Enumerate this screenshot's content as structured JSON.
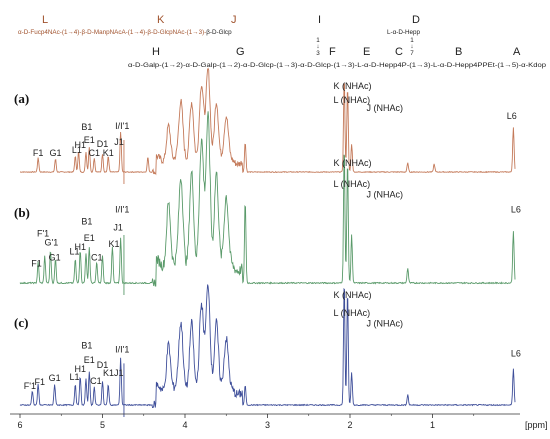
{
  "structure": {
    "top_letters": [
      {
        "id": "L",
        "text": "L",
        "color": "#a0522d"
      },
      {
        "id": "K",
        "text": "K",
        "color": "#a0522d"
      },
      {
        "id": "J",
        "text": "J",
        "color": "#a0522d"
      },
      {
        "id": "I",
        "text": "I",
        "color": "#222222"
      },
      {
        "id": "D",
        "text": "D",
        "color": "#222222"
      }
    ],
    "line1_brown": "α-D-Fucp4NAc-(1→4)-β-D-ManpNAcA-(1→4)-β-D-GlcpNAc-(1→3)-",
    "line1_black": "β-D-Glcp",
    "line1_d": "L-α-D-Hepp",
    "link_i_top": "1",
    "link_i_arrow": "↓",
    "link_i_bottom": "3",
    "link_d_top": "1",
    "link_d_arrow": "↓",
    "link_d_bottom": "7",
    "bottom_letters": [
      {
        "id": "H",
        "text": "H"
      },
      {
        "id": "G",
        "text": "G"
      },
      {
        "id": "F",
        "text": "F"
      },
      {
        "id": "E",
        "text": "E"
      },
      {
        "id": "C",
        "text": "C"
      },
      {
        "id": "B",
        "text": "B"
      },
      {
        "id": "A",
        "text": "A"
      }
    ],
    "line2": "α-D-Galp-(1→2)-α-D-Galp-(1→2)-α-D-Glcp-(1→3)-α-D-Glcp-(1→3)-L-α-D-Hepp4P-(1→3)-L-α-D-Hepp4PPEt-(1→5)-α-Kdop"
  },
  "chart_data": {
    "type": "line",
    "xlabel": "[ppm]",
    "xlim": [
      6.0,
      0.0
    ],
    "x_reversed": true,
    "ticks": [
      6,
      5,
      4,
      3,
      2,
      1
    ],
    "tick_labels": [
      "6",
      "5",
      "4",
      "3",
      "2",
      "1"
    ],
    "panels": [
      {
        "label": "(a)",
        "color": "#c47a5a",
        "peaks": [
          {
            "x": 5.78,
            "h": 0.14
          },
          {
            "x": 5.57,
            "h": 0.13
          },
          {
            "x": 5.33,
            "h": 0.16
          },
          {
            "x": 5.29,
            "h": 0.21
          },
          {
            "x": 5.2,
            "h": 0.2
          },
          {
            "x": 5.16,
            "h": 0.25
          },
          {
            "x": 5.1,
            "h": 0.14
          },
          {
            "x": 5.0,
            "h": 0.18
          },
          {
            "x": 4.93,
            "h": 0.16
          },
          {
            "x": 4.78,
            "h": 0.4
          },
          {
            "x": 4.45,
            "h": 0.15
          },
          {
            "x": 4.2,
            "h": 0.38
          },
          {
            "x": 4.05,
            "h": 0.55
          },
          {
            "x": 3.92,
            "h": 0.62
          },
          {
            "x": 3.8,
            "h": 0.72
          },
          {
            "x": 3.72,
            "h": 0.9
          },
          {
            "x": 3.62,
            "h": 0.62
          },
          {
            "x": 3.5,
            "h": 0.4
          },
          {
            "x": 3.27,
            "h": 0.3
          },
          {
            "x": 2.07,
            "h": 0.95
          },
          {
            "x": 2.03,
            "h": 0.86
          },
          {
            "x": 1.98,
            "h": 0.28
          },
          {
            "x": 1.3,
            "h": 0.09
          },
          {
            "x": 0.98,
            "h": 0.08
          },
          {
            "x": 0.02,
            "h": 0.45
          }
        ],
        "labels": [
          {
            "text": "F1",
            "x": 5.78,
            "y": 0.13
          },
          {
            "text": "G1",
            "x": 5.57,
            "y": 0.13
          },
          {
            "text": "L1",
            "x": 5.31,
            "y": 0.16
          },
          {
            "text": "H1",
            "x": 5.27,
            "y": 0.21
          },
          {
            "text": "B1",
            "x": 5.19,
            "y": 0.39
          },
          {
            "text": "E1",
            "x": 5.16,
            "y": 0.26
          },
          {
            "text": "C1",
            "x": 5.1,
            "y": 0.13
          },
          {
            "text": "D1",
            "x": 5.0,
            "y": 0.22
          },
          {
            "text": "K1",
            "x": 4.93,
            "y": 0.13
          },
          {
            "text": "J1",
            "x": 4.8,
            "y": 0.24
          },
          {
            "text": "I/I'1",
            "x": 4.76,
            "y": 0.4
          },
          {
            "text": "K (NHAc)",
            "x": 2.2,
            "y": 0.8
          },
          {
            "text": "L (NHAc)",
            "x": 2.2,
            "y": 0.66
          },
          {
            "text": "J (NHAc)",
            "x": 1.8,
            "y": 0.58
          },
          {
            "text": "L6",
            "x": 0.1,
            "y": 0.5
          }
        ]
      },
      {
        "label": "(b)",
        "color": "#5a9a6a",
        "peaks": [
          {
            "x": 5.78,
            "h": 0.14
          },
          {
            "x": 5.7,
            "h": 0.18
          },
          {
            "x": 5.63,
            "h": 0.22
          },
          {
            "x": 5.57,
            "h": 0.16
          },
          {
            "x": 5.33,
            "h": 0.16
          },
          {
            "x": 5.27,
            "h": 0.22
          },
          {
            "x": 5.2,
            "h": 0.2
          },
          {
            "x": 5.16,
            "h": 0.24
          },
          {
            "x": 5.07,
            "h": 0.14
          },
          {
            "x": 5.0,
            "h": 0.18
          },
          {
            "x": 4.88,
            "h": 0.24
          },
          {
            "x": 4.78,
            "h": 0.3
          },
          {
            "x": 4.2,
            "h": 0.45
          },
          {
            "x": 4.05,
            "h": 0.55
          },
          {
            "x": 3.92,
            "h": 0.66
          },
          {
            "x": 3.8,
            "h": 0.8
          },
          {
            "x": 3.72,
            "h": 0.98
          },
          {
            "x": 3.62,
            "h": 0.65
          },
          {
            "x": 3.5,
            "h": 0.42
          },
          {
            "x": 3.27,
            "h": 0.55
          },
          {
            "x": 2.07,
            "h": 0.92
          },
          {
            "x": 2.03,
            "h": 0.82
          },
          {
            "x": 1.98,
            "h": 0.32
          },
          {
            "x": 1.3,
            "h": 0.1
          },
          {
            "x": 0.02,
            "h": 0.35
          }
        ],
        "labels": [
          {
            "text": "F1",
            "x": 5.8,
            "y": 0.09
          },
          {
            "text": "F'1",
            "x": 5.72,
            "y": 0.29
          },
          {
            "text": "G'1",
            "x": 5.62,
            "y": 0.23
          },
          {
            "text": "G1",
            "x": 5.58,
            "y": 0.13
          },
          {
            "text": "L1",
            "x": 5.34,
            "y": 0.17
          },
          {
            "text": "H1",
            "x": 5.27,
            "y": 0.2
          },
          {
            "text": "B1",
            "x": 5.19,
            "y": 0.37
          },
          {
            "text": "E1",
            "x": 5.16,
            "y": 0.26
          },
          {
            "text": "C1",
            "x": 5.07,
            "y": 0.13
          },
          {
            "text": "K1",
            "x": 4.86,
            "y": 0.22
          },
          {
            "text": "J1",
            "x": 4.81,
            "y": 0.33
          },
          {
            "text": "I/I'1",
            "x": 4.76,
            "y": 0.45
          },
          {
            "text": "K (NHAc)",
            "x": 2.2,
            "y": 0.76
          },
          {
            "text": "L (NHAc)",
            "x": 2.2,
            "y": 0.62
          },
          {
            "text": "J (NHAc)",
            "x": 1.8,
            "y": 0.55
          },
          {
            "text": "L6",
            "x": 0.05,
            "y": 0.45
          }
        ]
      },
      {
        "label": "(c)",
        "color": "#3f4f9a",
        "peaks": [
          {
            "x": 5.85,
            "h": 0.11
          },
          {
            "x": 5.78,
            "h": 0.16
          },
          {
            "x": 5.58,
            "h": 0.16
          },
          {
            "x": 5.33,
            "h": 0.16
          },
          {
            "x": 5.27,
            "h": 0.22
          },
          {
            "x": 5.2,
            "h": 0.2
          },
          {
            "x": 5.16,
            "h": 0.26
          },
          {
            "x": 5.1,
            "h": 0.14
          },
          {
            "x": 5.0,
            "h": 0.18
          },
          {
            "x": 4.93,
            "h": 0.16
          },
          {
            "x": 4.78,
            "h": 0.36
          },
          {
            "x": 4.2,
            "h": 0.38
          },
          {
            "x": 4.05,
            "h": 0.48
          },
          {
            "x": 3.92,
            "h": 0.55
          },
          {
            "x": 3.8,
            "h": 0.62
          },
          {
            "x": 3.72,
            "h": 0.8
          },
          {
            "x": 3.62,
            "h": 0.55
          },
          {
            "x": 3.5,
            "h": 0.35
          },
          {
            "x": 3.27,
            "h": 0.15
          },
          {
            "x": 2.07,
            "h": 0.96
          },
          {
            "x": 2.03,
            "h": 0.88
          },
          {
            "x": 1.98,
            "h": 0.25
          },
          {
            "x": 1.3,
            "h": 0.08
          },
          {
            "x": 0.02,
            "h": 0.28
          }
        ],
        "labels": [
          {
            "text": "F'1",
            "x": 5.88,
            "y": 0.1
          },
          {
            "text": "F1",
            "x": 5.76,
            "y": 0.13
          },
          {
            "text": "G1",
            "x": 5.58,
            "y": 0.16
          },
          {
            "text": "L1",
            "x": 5.34,
            "y": 0.17
          },
          {
            "text": "H1",
            "x": 5.27,
            "y": 0.23
          },
          {
            "text": "B1",
            "x": 5.19,
            "y": 0.41
          },
          {
            "text": "E1",
            "x": 5.16,
            "y": 0.3
          },
          {
            "text": "C1",
            "x": 5.08,
            "y": 0.14
          },
          {
            "text": "D1",
            "x": 5.0,
            "y": 0.26
          },
          {
            "text": "K1J1",
            "x": 4.87,
            "y": 0.2
          },
          {
            "text": "I/I'1",
            "x": 4.76,
            "y": 0.38
          },
          {
            "text": "K (NHAc)",
            "x": 2.2,
            "y": 0.8
          },
          {
            "text": "L (NHAc)",
            "x": 2.2,
            "y": 0.66
          },
          {
            "text": "J (NHAc)",
            "x": 1.8,
            "y": 0.58
          },
          {
            "text": "L6",
            "x": 0.05,
            "y": 0.35
          }
        ]
      }
    ]
  }
}
